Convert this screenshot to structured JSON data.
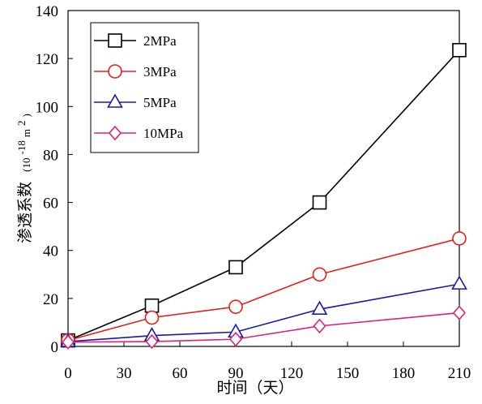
{
  "chart_data": {
    "type": "line",
    "xlabel": "时间（天）",
    "ylabel": "渗透系数",
    "ylabel_unit_prefix": "(10",
    "ylabel_unit_exp": "-18",
    "ylabel_unit_mid": "m",
    "ylabel_unit_exp2": "2",
    "ylabel_unit_suffix": ")",
    "xlim": [
      0,
      210
    ],
    "ylim": [
      0,
      140
    ],
    "x_ticks": [
      0,
      30,
      60,
      90,
      120,
      150,
      180,
      210
    ],
    "y_ticks": [
      0,
      20,
      40,
      60,
      80,
      100,
      120,
      140
    ],
    "grid": false,
    "legend_position": "top-left",
    "series": [
      {
        "name": "2MPa",
        "color": "#000000",
        "marker": "square",
        "x": [
          0,
          45,
          90,
          135,
          210
        ],
        "y": [
          2.5,
          17,
          33,
          60,
          123.5
        ]
      },
      {
        "name": "3MPa",
        "color": "#e0201b",
        "marker": "circle",
        "x": [
          0,
          45,
          90,
          135,
          210
        ],
        "y": [
          2.5,
          12,
          16.5,
          30,
          45
        ]
      },
      {
        "name": "5MPa",
        "color": "#1a1aa6",
        "marker": "triangle",
        "x": [
          0,
          45,
          90,
          135,
          210
        ],
        "y": [
          2,
          4.5,
          6,
          15.5,
          26
        ]
      },
      {
        "name": "10MPa",
        "color": "#e0207a",
        "marker": "diamond",
        "x": [
          0,
          45,
          90,
          135,
          210
        ],
        "y": [
          1.8,
          2,
          3,
          8.5,
          14
        ]
      }
    ]
  }
}
